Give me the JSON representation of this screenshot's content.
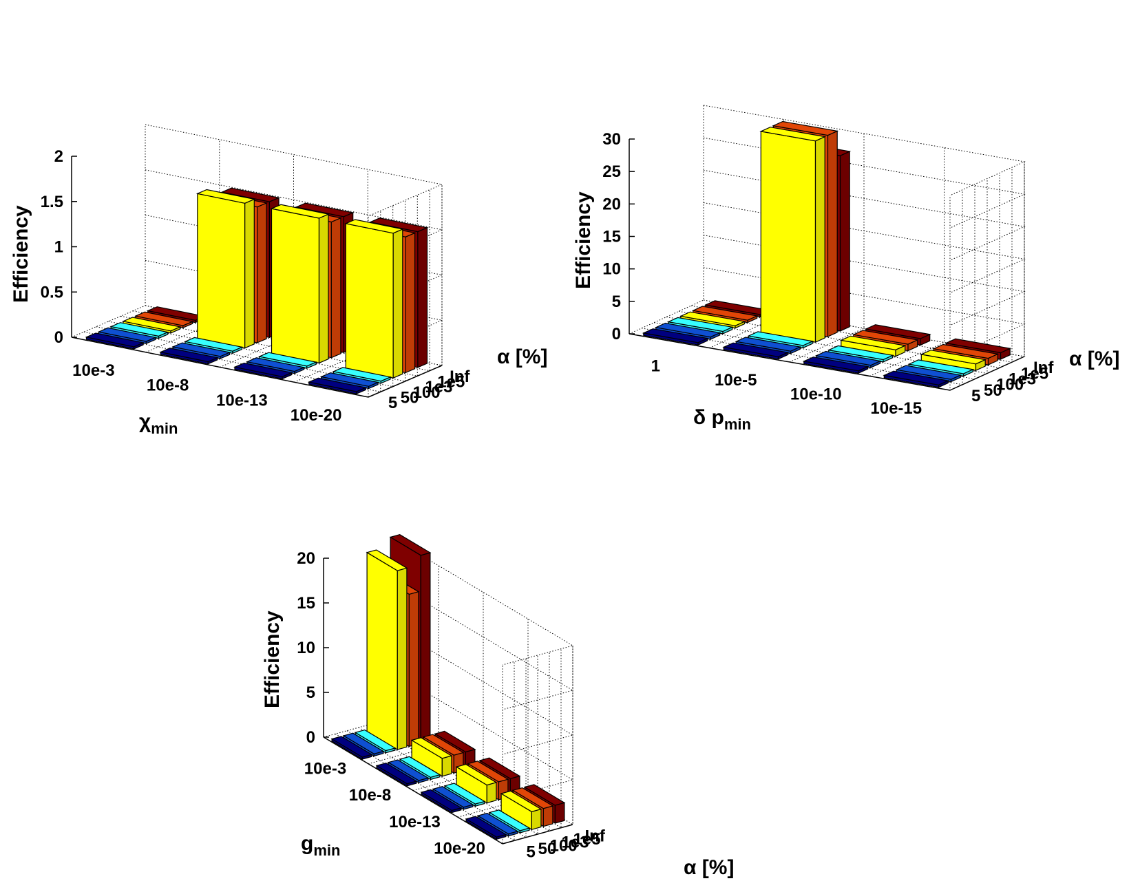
{
  "colors": {
    "alpha_5": "#000080",
    "alpha_50": "#0f50d2",
    "alpha_100": "#38ffff",
    "alpha_1e3": "#ffff00",
    "alpha_1e5": "#e14607",
    "alpha_Inf": "#7f0000",
    "grid": "#000000",
    "background": "#ffffff"
  },
  "chart_data": [
    {
      "type": "bar3d",
      "ylabel": "Efficiency",
      "xlabel_main": "χ",
      "xlabel_sub": "min",
      "alpha_label": "α [%]",
      "zlim": [
        0,
        2
      ],
      "z_ticks": [
        "0",
        "0.5",
        "1",
        "1.5",
        "2"
      ],
      "z_tick_values": [
        0,
        0.5,
        1,
        1.5,
        2
      ],
      "categories": [
        "10e-3",
        "10e-8",
        "10e-13",
        "10e-20"
      ],
      "alpha_categories": [
        "5",
        "50",
        "100",
        "1e3",
        "1e5",
        "Inf"
      ],
      "series": [
        {
          "name": "5",
          "values": [
            0,
            0,
            0,
            0
          ]
        },
        {
          "name": "50",
          "values": [
            0,
            0,
            0,
            0
          ]
        },
        {
          "name": "100",
          "values": [
            0,
            0,
            0,
            0
          ]
        },
        {
          "name": "1e3",
          "values": [
            0,
            1.6,
            1.6,
            1.6
          ]
        },
        {
          "name": "1e5",
          "values": [
            0,
            1.5,
            1.5,
            1.5
          ]
        },
        {
          "name": "Inf",
          "values": [
            0,
            1.5,
            1.5,
            1.5
          ]
        }
      ],
      "grid": true
    },
    {
      "type": "bar3d",
      "ylabel": "Efficiency",
      "xlabel_main": "δ p",
      "xlabel_sub": "min",
      "alpha_label": "α [%]",
      "zlim": [
        0,
        30
      ],
      "z_ticks": [
        "0",
        "5",
        "10",
        "15",
        "20",
        "25",
        "30"
      ],
      "z_tick_values": [
        0,
        5,
        10,
        15,
        20,
        25,
        30
      ],
      "categories": [
        "1",
        "10e-5",
        "10e-10",
        "10e-15"
      ],
      "alpha_categories": [
        "5",
        "50",
        "100",
        "1e3",
        "1e5",
        "Inf"
      ],
      "series": [
        {
          "name": "5",
          "values": [
            0,
            0,
            0,
            0
          ]
        },
        {
          "name": "50",
          "values": [
            0,
            0,
            0,
            0
          ]
        },
        {
          "name": "100",
          "values": [
            0,
            0,
            0,
            0
          ]
        },
        {
          "name": "1e3",
          "values": [
            0,
            31,
            1,
            1
          ]
        },
        {
          "name": "1e5",
          "values": [
            0,
            31,
            1,
            1
          ]
        },
        {
          "name": "Inf",
          "values": [
            0,
            27,
            1,
            1
          ]
        }
      ],
      "grid": true
    },
    {
      "type": "bar3d",
      "ylabel": "Efficiency",
      "xlabel_main": "g",
      "xlabel_sub": "min",
      "alpha_label": "α [%]",
      "zlim": [
        0,
        20
      ],
      "z_ticks": [
        "0",
        "5",
        "10",
        "15",
        "20"
      ],
      "z_tick_values": [
        0,
        5,
        10,
        15,
        20
      ],
      "categories": [
        "10e-3",
        "10e-8",
        "10e-13",
        "10e-20"
      ],
      "alpha_categories": [
        "5",
        "50",
        "100",
        "1e3",
        "1e5",
        "Inf"
      ],
      "series": [
        {
          "name": "5",
          "values": [
            0,
            0,
            0,
            0
          ]
        },
        {
          "name": "50",
          "values": [
            0,
            0,
            0,
            0
          ]
        },
        {
          "name": "100",
          "values": [
            0,
            0,
            0,
            0
          ]
        },
        {
          "name": "1e3",
          "values": [
            20,
            2,
            2,
            2
          ]
        },
        {
          "name": "1e5",
          "values": [
            17,
            2,
            2,
            2
          ]
        },
        {
          "name": "Inf",
          "values": [
            21,
            2,
            2,
            2
          ]
        }
      ],
      "grid": true
    }
  ]
}
